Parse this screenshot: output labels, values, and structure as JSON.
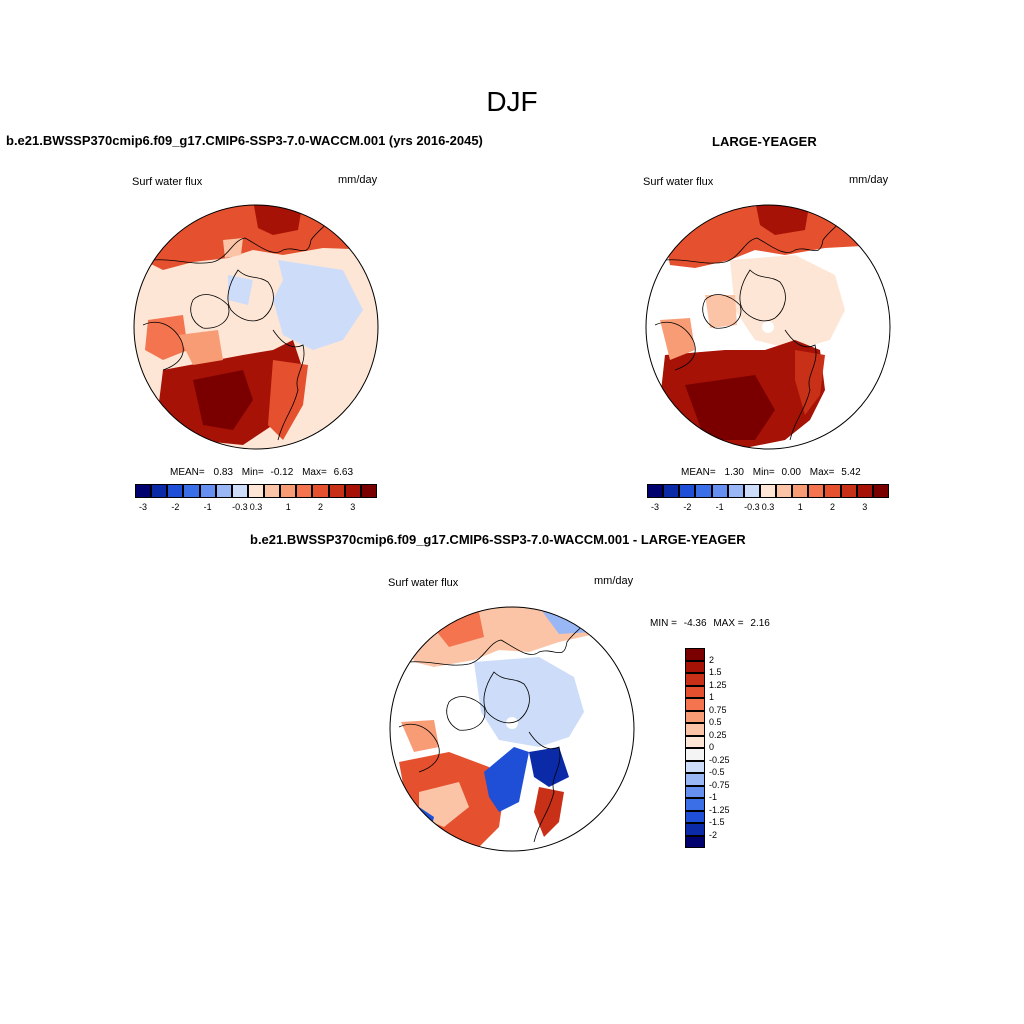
{
  "figure": {
    "title": "DJF"
  },
  "panel_left": {
    "title": "b.e21.BWSSP370cmip6.f09_g17.CMIP6-SSP3-7.0-WACCM.001 (yrs 2016-2045)",
    "variable": "Surf water flux",
    "units": "mm/day",
    "stats": {
      "mean_label": "MEAN=",
      "mean": "0.83",
      "min_label": "Min=",
      "min": "-0.12",
      "max_label": "Max=",
      "max": "6.63"
    }
  },
  "panel_right": {
    "title": "LARGE-YEAGER",
    "variable": "Surf water flux",
    "units": "mm/day",
    "stats": {
      "mean_label": "MEAN=",
      "mean": "1.30",
      "min_label": "Min=",
      "min": "0.00",
      "max_label": "Max=",
      "max": "5.42"
    }
  },
  "panel_diff": {
    "title": "b.e21.BWSSP370cmip6.f09_g17.CMIP6-SSP3-7.0-WACCM.001 - LARGE-YEAGER",
    "variable": "Surf water flux",
    "units": "mm/day",
    "minmax": {
      "min_label": "MIN =",
      "min": "-4.36",
      "max_label": "MAX =",
      "max": "2.16"
    }
  },
  "colorbar_top": {
    "colors": [
      "#00006e",
      "#0a2aa8",
      "#1e4fd6",
      "#3a6fe8",
      "#6690f0",
      "#9ab7f5",
      "#cdddf9",
      "#fde6d6",
      "#fbc4a6",
      "#f89c76",
      "#f3744f",
      "#e5502e",
      "#c93018",
      "#a61206",
      "#7a0000"
    ],
    "tick_labels": [
      "-3",
      "-2",
      "-1",
      "-0.3",
      "0.3",
      "1",
      "2",
      "3"
    ]
  },
  "colorbar_diff": {
    "colors": [
      "#00006e",
      "#0a2aa8",
      "#1e4fd6",
      "#3a6fe8",
      "#6690f0",
      "#9ab7f5",
      "#cdddf9",
      "#f4f4f4",
      "#fde6d6",
      "#fbc4a6",
      "#f89c76",
      "#f3744f",
      "#e5502e",
      "#c93018",
      "#a61206",
      "#7a0000"
    ],
    "tick_labels": [
      "2",
      "1.5",
      "1.25",
      "1",
      "0.75",
      "0.5",
      "0.25",
      "0",
      "-0.25",
      "-0.5",
      "-0.75",
      "-1",
      "-1.25",
      "-1.5",
      "-2"
    ]
  }
}
